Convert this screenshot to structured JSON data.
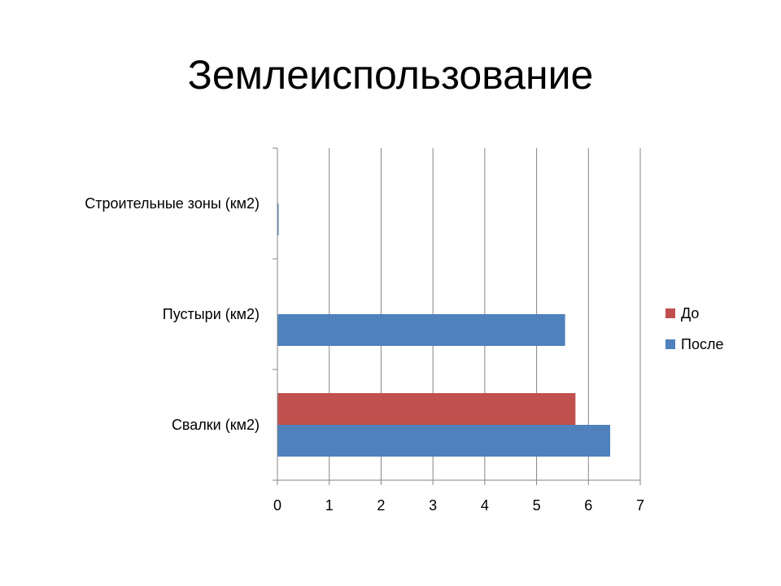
{
  "slide": {
    "title": "Землеиспользование"
  },
  "chart_data": {
    "type": "bar",
    "orientation": "horizontal",
    "title": "",
    "xlabel": "",
    "ylabel": "",
    "categories": [
      "Строительные зоны (км2)",
      "Пустыри (км2)",
      "Свалки (км2)"
    ],
    "series": [
      {
        "name": "До",
        "color": "#C0504D",
        "values": [
          0,
          0,
          5.75
        ]
      },
      {
        "name": "После",
        "color": "#4F81BD",
        "values": [
          0.02,
          5.55,
          6.42
        ]
      }
    ],
    "xlim": [
      0,
      7
    ],
    "x_ticks": [
      "0",
      "1",
      "2",
      "3",
      "4",
      "5",
      "6",
      "7"
    ],
    "grid": true,
    "legend_position": "right"
  }
}
